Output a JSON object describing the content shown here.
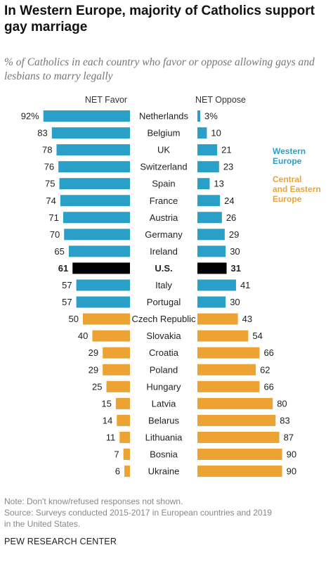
{
  "title": "In Western Europe, majority of Catholics support gay marriage",
  "subtitle": "% of Catholics in each country who favor or oppose allowing gays and lesbians to marry legally",
  "colors": {
    "western": "#2a9fc8",
    "central_eastern": "#eda334",
    "us": "#000000"
  },
  "legend": [
    {
      "label_lines": [
        "Western",
        "Europe"
      ],
      "color": "#2a9fc8"
    },
    {
      "label_lines": [
        "Central",
        "and Eastern",
        "Europe"
      ],
      "color": "#eda334"
    }
  ],
  "chart_data": {
    "type": "bar",
    "orientation": "horizontal",
    "layout": "diverging",
    "column_headers": {
      "favor": "NET Favor",
      "oppose": "NET Oppose"
    },
    "categories": [
      "Netherlands",
      "Belgium",
      "UK",
      "Switzerland",
      "Spain",
      "France",
      "Austria",
      "Germany",
      "Ireland",
      "U.S.",
      "Italy",
      "Portugal",
      "Czech Republic",
      "Slovakia",
      "Croatia",
      "Poland",
      "Hungary",
      "Latvia",
      "Belarus",
      "Lithuania",
      "Bosnia",
      "Ukraine"
    ],
    "groups": [
      "western",
      "western",
      "western",
      "western",
      "western",
      "western",
      "western",
      "western",
      "western",
      "us",
      "western",
      "western",
      "central_eastern",
      "central_eastern",
      "central_eastern",
      "central_eastern",
      "central_eastern",
      "central_eastern",
      "central_eastern",
      "central_eastern",
      "central_eastern",
      "central_eastern"
    ],
    "series": [
      {
        "name": "NET Favor",
        "values": [
          92,
          83,
          78,
          76,
          75,
          74,
          71,
          70,
          65,
          61,
          57,
          57,
          50,
          40,
          29,
          29,
          25,
          15,
          14,
          11,
          7,
          6
        ]
      },
      {
        "name": "NET Oppose",
        "values": [
          3,
          10,
          21,
          23,
          13,
          24,
          26,
          29,
          30,
          31,
          41,
          30,
          43,
          54,
          66,
          62,
          66,
          80,
          83,
          87,
          90,
          90
        ]
      }
    ],
    "favor_labels": [
      "92%",
      "83",
      "78",
      "76",
      "75",
      "74",
      "71",
      "70",
      "65",
      "61",
      "57",
      "57",
      "50",
      "40",
      "29",
      "29",
      "25",
      "15",
      "14",
      "11",
      "7",
      "6"
    ],
    "oppose_labels": [
      "3%",
      "10",
      "21",
      "23",
      "13",
      "24",
      "26",
      "29",
      "30",
      "31",
      "41",
      "30",
      "43",
      "54",
      "66",
      "62",
      "66",
      "80",
      "83",
      "87",
      "90",
      "90"
    ],
    "bold_categories": [
      "U.S."
    ],
    "xlim": [
      0,
      100
    ]
  },
  "notes": {
    "note": "Note: Don't know/refused responses not shown.",
    "source_line1": "Source: Surveys conducted 2015-2017 in European countries and 2019",
    "source_line2": "in the United States."
  },
  "brand": "PEW RESEARCH CENTER"
}
